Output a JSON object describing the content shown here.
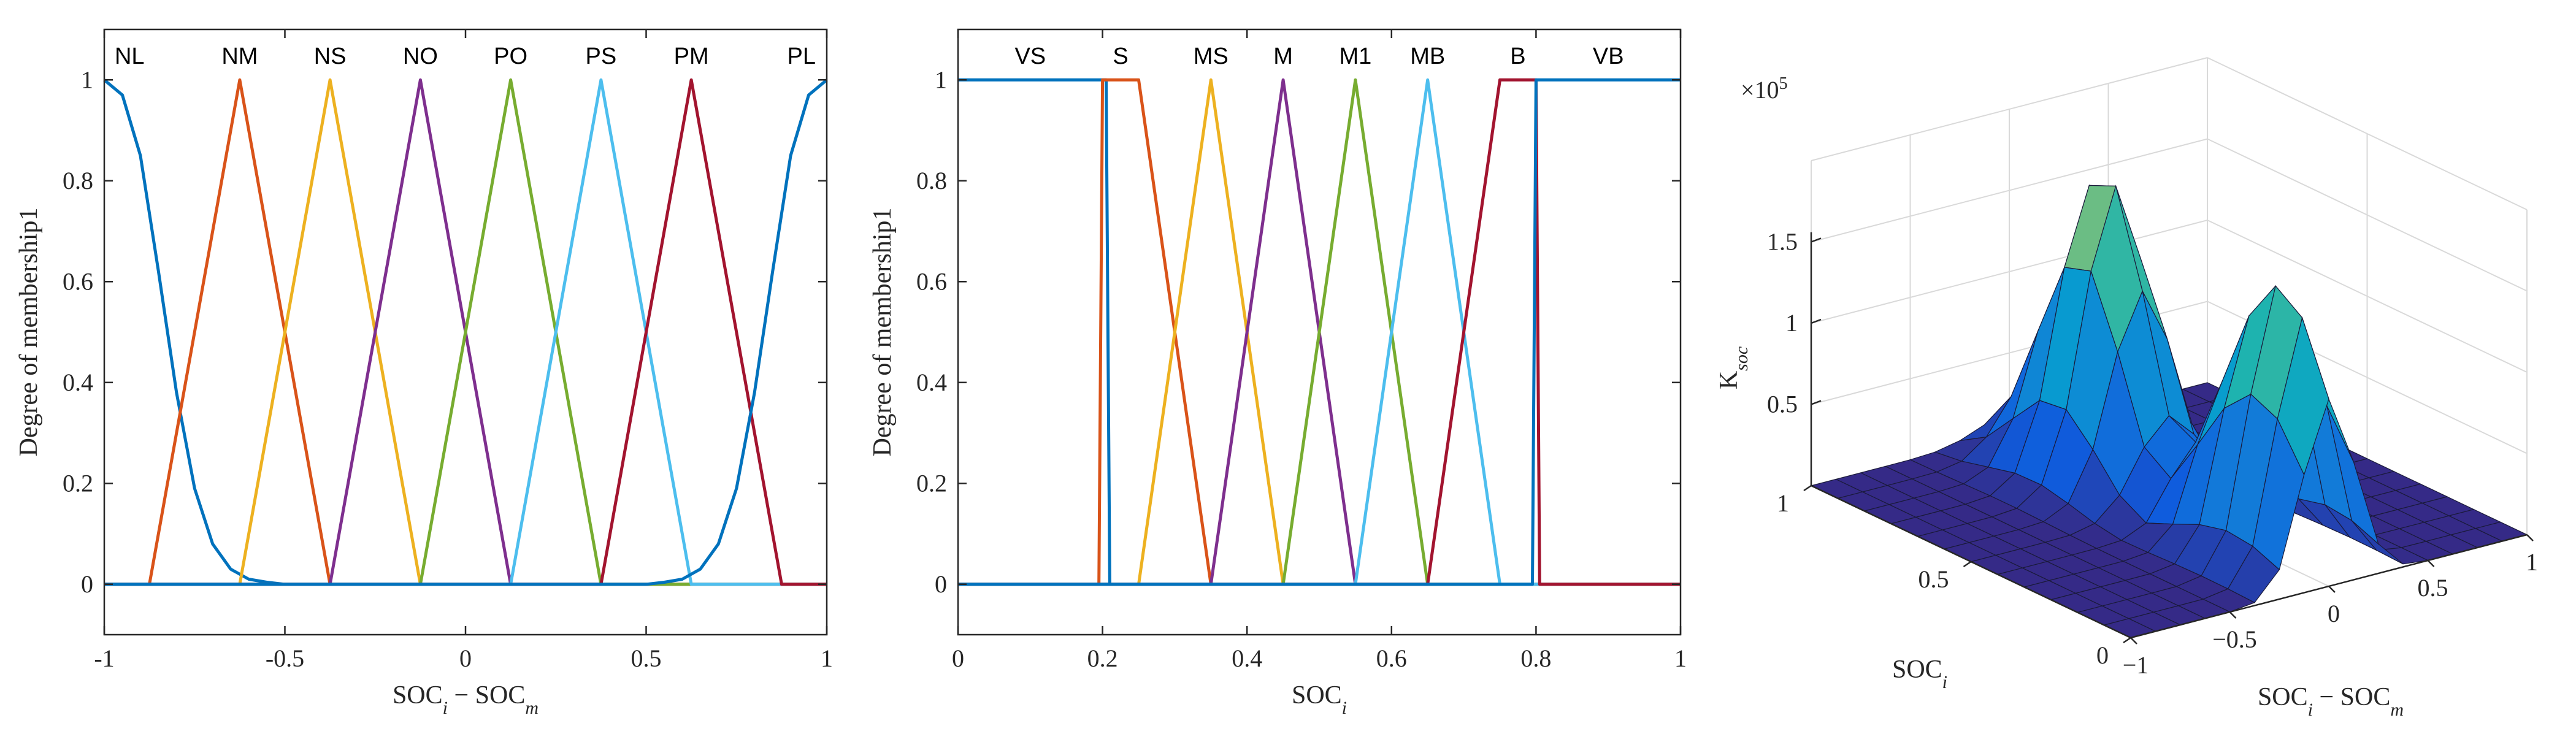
{
  "chart_data": [
    {
      "type": "line",
      "xlabel": "SOC_i − SOC_m",
      "ylabel": "Degree of membership1",
      "xlim": [
        -1,
        1
      ],
      "ylim": [
        -0.1,
        1.1
      ],
      "xticks": [
        -1,
        -0.5,
        0,
        0.5,
        1
      ],
      "xtick_labels": [
        "-1",
        "-0.5",
        "0",
        "0.5",
        "1"
      ],
      "yticks": [
        0,
        0.2,
        0.4,
        0.6,
        0.8,
        1
      ],
      "ytick_labels": [
        "0",
        "0.2",
        "0.4",
        "0.6",
        "0.8",
        "1"
      ],
      "series": [
        {
          "name": "NL",
          "color": "#0072BD",
          "x": [
            -1,
            -0.95,
            -0.9,
            -0.85,
            -0.8,
            -0.75,
            -0.7,
            -0.65,
            -0.6,
            -0.55,
            -0.5,
            -0.4,
            1
          ],
          "y": [
            1,
            0.97,
            0.85,
            0.62,
            0.38,
            0.19,
            0.08,
            0.03,
            0.01,
            0.004,
            0,
            0,
            0
          ]
        },
        {
          "name": "NM",
          "color": "#D95319",
          "x": [
            -1,
            -0.875,
            -0.625,
            -0.375,
            1
          ],
          "y": [
            0,
            0,
            1,
            0,
            0
          ]
        },
        {
          "name": "NS",
          "color": "#EDB120",
          "x": [
            -1,
            -0.625,
            -0.375,
            -0.125,
            1
          ],
          "y": [
            0,
            0,
            1,
            0,
            0
          ]
        },
        {
          "name": "NO",
          "color": "#7E2F8E",
          "x": [
            -1,
            -0.375,
            -0.125,
            0.125,
            1
          ],
          "y": [
            0,
            0,
            1,
            0,
            0
          ]
        },
        {
          "name": "PO",
          "color": "#77AC30",
          "x": [
            -1,
            -0.125,
            0.125,
            0.375,
            1
          ],
          "y": [
            0,
            0,
            1,
            0,
            0
          ]
        },
        {
          "name": "PS",
          "color": "#4DBEEE",
          "x": [
            -1,
            0.125,
            0.375,
            0.625,
            1
          ],
          "y": [
            0,
            0,
            1,
            0,
            0
          ]
        },
        {
          "name": "PM",
          "color": "#A2142F",
          "x": [
            -1,
            0.375,
            0.625,
            0.875,
            1
          ],
          "y": [
            0,
            0,
            1,
            0,
            0
          ]
        },
        {
          "name": "PL",
          "color": "#0072BD",
          "x": [
            -1,
            0.4,
            0.5,
            0.55,
            0.6,
            0.65,
            0.7,
            0.75,
            0.8,
            0.85,
            0.9,
            0.95,
            1
          ],
          "y": [
            0,
            0,
            0,
            0.004,
            0.01,
            0.03,
            0.08,
            0.19,
            0.38,
            0.62,
            0.85,
            0.97,
            1
          ]
        }
      ],
      "label_positions_x": [
        -0.93,
        -0.625,
        -0.375,
        -0.125,
        0.125,
        0.375,
        0.625,
        0.93
      ]
    },
    {
      "type": "line",
      "xlabel": "SOC_i",
      "ylabel": "Degree of membership1",
      "xlim": [
        0,
        1
      ],
      "ylim": [
        -0.1,
        1.1
      ],
      "xticks": [
        0,
        0.2,
        0.4,
        0.6,
        0.8,
        1
      ],
      "xtick_labels": [
        "0",
        "0.2",
        "0.4",
        "0.6",
        "0.8",
        "1"
      ],
      "yticks": [
        0,
        0.2,
        0.4,
        0.6,
        0.8,
        1
      ],
      "ytick_labels": [
        "0",
        "0.2",
        "0.4",
        "0.6",
        "0.8",
        "1"
      ],
      "series": [
        {
          "name": "VS",
          "color": "#0072BD",
          "x": [
            0,
            0.205,
            0.21,
            1
          ],
          "y": [
            1,
            1,
            0,
            0
          ]
        },
        {
          "name": "S",
          "color": "#D95319",
          "x": [
            0,
            0.195,
            0.2,
            0.25,
            0.35,
            1
          ],
          "y": [
            0,
            0,
            1,
            1,
            0,
            0
          ]
        },
        {
          "name": "MS",
          "color": "#EDB120",
          "x": [
            0,
            0.25,
            0.35,
            0.45,
            1
          ],
          "y": [
            0,
            0,
            1,
            0,
            0
          ]
        },
        {
          "name": "M",
          "color": "#7E2F8E",
          "x": [
            0,
            0.35,
            0.45,
            0.55,
            1
          ],
          "y": [
            0,
            0,
            1,
            0,
            0
          ]
        },
        {
          "name": "M1",
          "color": "#77AC30",
          "x": [
            0,
            0.45,
            0.55,
            0.65,
            1
          ],
          "y": [
            0,
            0,
            1,
            0,
            0
          ]
        },
        {
          "name": "MB",
          "color": "#4DBEEE",
          "x": [
            0,
            0.55,
            0.65,
            0.75,
            1
          ],
          "y": [
            0,
            0,
            1,
            0,
            0
          ]
        },
        {
          "name": "B",
          "color": "#A2142F",
          "x": [
            0,
            0.65,
            0.75,
            0.8,
            0.805,
            1
          ],
          "y": [
            0,
            0,
            1,
            1,
            0,
            0
          ]
        },
        {
          "name": "VB",
          "color": "#0072BD",
          "x": [
            0,
            0.795,
            0.8,
            1
          ],
          "y": [
            0,
            0,
            1,
            1
          ]
        }
      ],
      "label_positions_x": [
        0.1,
        0.225,
        0.35,
        0.45,
        0.55,
        0.65,
        0.775,
        0.9
      ]
    },
    {
      "type": "surface",
      "zlabel": "K_soc",
      "ylabel": "SOC_i",
      "xlabel": "SOC_i − SOC_m",
      "z_exponent": "×10^5",
      "xlim": [
        -1,
        1
      ],
      "ylim": [
        0,
        1
      ],
      "zticks": [
        0.5,
        1,
        1.5
      ],
      "ztick_labels": [
        "0.5",
        "1",
        "1.5"
      ],
      "xticks": [
        -1,
        -0.5,
        0,
        0.5,
        1
      ],
      "xtick_labels": [
        "−1",
        "−0.5",
        "0",
        "0.5",
        "1"
      ],
      "yticks": [
        0,
        0.5,
        1
      ],
      "ytick_labels": [
        "0",
        "0.5",
        "1"
      ],
      "peaks": [
        {
          "x": 0.0,
          "y": 0.7,
          "z": 1.9
        },
        {
          "x": 0.0,
          "y": 0.15,
          "z": 1.7
        }
      ]
    }
  ]
}
